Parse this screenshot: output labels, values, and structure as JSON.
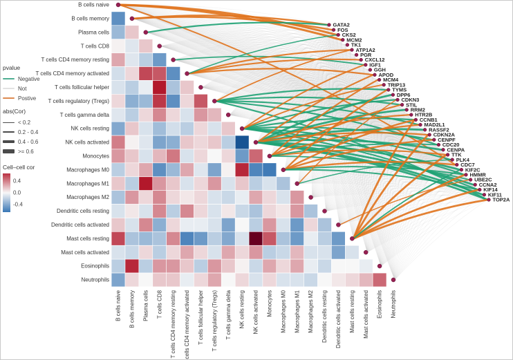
{
  "figure": {
    "background": "#ffffff"
  },
  "legend_pvalue": {
    "title": "pvalue",
    "items": [
      {
        "label": "Negative",
        "color": "#4fae92"
      },
      {
        "label": "Not",
        "color": "#e2e2e2"
      },
      {
        "label": "Postive",
        "color": "#dd8a50"
      }
    ]
  },
  "legend_abscor": {
    "title": "abs(Cor)",
    "items": [
      {
        "label": "< 0.2",
        "width": 1
      },
      {
        "label": "0.2 - 0.4",
        "width": 2.5
      },
      {
        "label": "0.4 - 0.6",
        "width": 4
      },
      {
        "label": ">= 0.6",
        "width": 5.5
      }
    ]
  },
  "legend_colorbar": {
    "title": "Cell–cell cor",
    "ticks": [
      "0.4",
      "0.0",
      "-0.4"
    ]
  },
  "chart_data": {
    "type": "heatmap",
    "title": "",
    "description": "Lower-triangular cell-cell correlation heatmap of immune cell fractions with curved links from cell-type nodes to gene nodes; link color = correlation p-value sign, link width = abs(Cor).",
    "cell_types": [
      "B cells naive",
      "B cells memory",
      "Plasma cells",
      "T cells CD8",
      "T cells CD4 memory resting",
      "T cells CD4 memory activated",
      "T cells follicular helper",
      "T cells regulatory (Tregs)",
      "T cells gamma delta",
      "NK cells resting",
      "NK cells activated",
      "Monocytes",
      "Macrophages M0",
      "Macrophages M1",
      "Macrophages M2",
      "Dendritic cells resting",
      "Dendritic cells activated",
      "Mast cells resting",
      "Mast cells activated",
      "Eosinophils",
      "Neutrophils"
    ],
    "genes": [
      "GATA2",
      "FOS",
      "CKS2",
      "MCM2",
      "TK1",
      "ATP1A2",
      "PGR",
      "CXCL12",
      "IGF1",
      "GGH",
      "APOD",
      "MCM4",
      "TRIP13",
      "TYMS",
      "DPP6",
      "CDKN3",
      "STIL",
      "RRM2",
      "HTR2B",
      "CCNB1",
      "MAD2L1",
      "RASSF2",
      "CDKN2A",
      "CENPF",
      "CDC20",
      "CENPA",
      "TTK",
      "PLK4",
      "CDC7",
      "KIF2C",
      "HMMR",
      "UBE2C",
      "CCNA2",
      "KIF14",
      "KIF11",
      "TOP2A"
    ],
    "correlation_matrix_lower_triangle": [
      [],
      [
        -0.5
      ],
      [
        -0.3,
        0.15
      ],
      [
        0.02,
        -0.08,
        0.15
      ],
      [
        0.25,
        -0.08,
        -0.2,
        -0.45
      ],
      [
        -0.12,
        0.1,
        0.55,
        0.5,
        -0.5
      ],
      [
        -0.1,
        -0.2,
        -0.05,
        0.7,
        -0.25,
        0.15
      ],
      [
        0.1,
        -0.35,
        -0.3,
        0.6,
        -0.5,
        0.1,
        0.5
      ],
      [
        -0.08,
        -0.2,
        0.1,
        0.35,
        0.1,
        -0.1,
        0.3,
        0.2
      ],
      [
        -0.38,
        0.15,
        -0.1,
        -0.28,
        -0.12,
        -0.2,
        0.1,
        -0.1,
        0.15
      ],
      [
        0.38,
        0.02,
        -0.08,
        -0.4,
        -0.35,
        0.15,
        0.1,
        0.15,
        -0.2,
        -0.75
      ],
      [
        0.3,
        0.15,
        -0.1,
        0.2,
        0.4,
        -0.1,
        0.1,
        0.0,
        0.1,
        -0.45,
        0.45
      ],
      [
        -0.2,
        0.1,
        0.25,
        -0.5,
        -0.3,
        0.25,
        -0.08,
        -0.4,
        0.02,
        0.65,
        -0.55,
        -0.6
      ],
      [
        0.15,
        -0.2,
        0.7,
        0.3,
        0.15,
        -0.1,
        0.1,
        0.3,
        -0.1,
        0.15,
        -0.2,
        -0.1,
        -0.25
      ],
      [
        -0.25,
        0.3,
        0.1,
        0.35,
        0.1,
        0.05,
        0.1,
        -0.1,
        -0.15,
        -0.05,
        0.25,
        0.1,
        -0.1,
        0.3
      ],
      [
        -0.1,
        0.05,
        -0.1,
        0.35,
        -0.2,
        0.35,
        0.1,
        -0.1,
        0.05,
        -0.15,
        -0.25,
        0.1,
        0.05,
        0.3,
        -0.25
      ],
      [
        0.15,
        -0.1,
        0.35,
        -0.35,
        0.1,
        -0.05,
        -0.05,
        -0.1,
        -0.4,
        0.0,
        -0.2,
        0.3,
        -0.1,
        -0.45,
        0.1,
        -0.25
      ],
      [
        0.55,
        -0.25,
        -0.3,
        -0.25,
        0.35,
        -0.55,
        -0.45,
        -0.2,
        -0.38,
        -0.1,
        0.85,
        0.5,
        -0.25,
        -0.45,
        -0.05,
        -0.2,
        -0.45
      ],
      [
        -0.1,
        -0.15,
        0.1,
        -0.2,
        0.1,
        0.25,
        0.1,
        -0.1,
        0.25,
        0.1,
        0.3,
        -0.2,
        -0.15,
        0.2,
        -0.1,
        -0.1,
        -0.4,
        -0.1
      ],
      [
        -0.2,
        0.65,
        -0.2,
        0.3,
        0.3,
        0.15,
        -0.2,
        0.3,
        0.15,
        0.02,
        -0.15,
        0.25,
        0.1,
        0.25,
        -0.05,
        -0.15,
        0.0,
        0.0,
        -0.05
      ],
      [
        -0.4,
        0.1,
        0.0,
        0.15,
        0.15,
        -0.05,
        0.1,
        0.25,
        0.0,
        0.1,
        -0.1,
        0.1,
        -0.1,
        -0.1,
        -0.15,
        0.0,
        0.05,
        0.1,
        0.2,
        0.45
      ]
    ],
    "links": {
      "default_sign": "not",
      "colored": [
        {
          "cell": 0,
          "genes": [
            2,
            3
          ],
          "sign": "pos",
          "w": 3
        },
        {
          "cell": 0,
          "genes": [
            28
          ],
          "sign": "pos",
          "w": 2
        },
        {
          "cell": 1,
          "genes": [
            0,
            1
          ],
          "sign": "pos",
          "w": 2.5
        },
        {
          "cell": 2,
          "genes": [
            0
          ],
          "sign": "neg",
          "w": 2.2
        },
        {
          "cell": 4,
          "genes": [
            8
          ],
          "sign": "neg",
          "w": 1.8
        },
        {
          "cell": 5,
          "genes": [
            5,
            7,
            10
          ],
          "sign": "pos",
          "w": 2.2
        },
        {
          "cell": 5,
          "genes": [
            2
          ],
          "sign": "neg",
          "w": 1.5
        },
        {
          "cell": 7,
          "genes": [
            13,
            16,
            20,
            24
          ],
          "sign": "neg",
          "w": 2.2
        },
        {
          "cell": 7,
          "genes": [
            5
          ],
          "sign": "pos",
          "w": 1.8
        },
        {
          "cell": 7,
          "genes": [
            35
          ],
          "sign": "neg",
          "w": 2.2
        },
        {
          "cell": 9,
          "genes": [
            15,
            19,
            23,
            27,
            30,
            33
          ],
          "sign": "neg",
          "w": 2.2
        },
        {
          "cell": 9,
          "genes": [
            8,
            12
          ],
          "sign": "pos",
          "w": 2
        },
        {
          "cell": 10,
          "genes": [
            14,
            17,
            21,
            25,
            29,
            32,
            35
          ],
          "sign": "neg",
          "w": 2.8
        },
        {
          "cell": 10,
          "genes": [
            10,
            18,
            22
          ],
          "sign": "pos",
          "w": 2.2
        },
        {
          "cell": 10,
          "genes": [
            34
          ],
          "sign": "neg",
          "w": 2.8
        },
        {
          "cell": 11,
          "genes": [
            11,
            16,
            20,
            26
          ],
          "sign": "pos",
          "w": 2.2
        },
        {
          "cell": 11,
          "genes": [
            24,
            31
          ],
          "sign": "neg",
          "w": 1.8
        },
        {
          "cell": 12,
          "genes": [
            13,
            19,
            23,
            28
          ],
          "sign": "pos",
          "w": 2.4
        },
        {
          "cell": 12,
          "genes": [
            30,
            33
          ],
          "sign": "neg",
          "w": 2
        },
        {
          "cell": 13,
          "genes": [
            27
          ],
          "sign": "neg",
          "w": 1.5
        },
        {
          "cell": 13,
          "genes": [
            15
          ],
          "sign": "pos",
          "w": 1.5
        },
        {
          "cell": 16,
          "genes": [
            31
          ],
          "sign": "pos",
          "w": 1.5
        },
        {
          "cell": 17,
          "genes": [
            19,
            22,
            26,
            30,
            33,
            35
          ],
          "sign": "pos",
          "w": 2.8
        },
        {
          "cell": 17,
          "genes": [
            29
          ],
          "sign": "neg",
          "w": 1.8
        }
      ]
    },
    "colors": {
      "positive_link": "#e0731d",
      "negative_link": "#1fa274",
      "neutral_link": "#cccccc",
      "node_dot": "#962052",
      "heat_max": "#b2182b",
      "heat_extreme_max": "#67001f",
      "heat_mid": "#f7f7f7",
      "heat_min": "#2166ac",
      "heat_extreme_min": "#053061"
    },
    "colorbar_range": [
      0.62,
      -0.62
    ]
  }
}
